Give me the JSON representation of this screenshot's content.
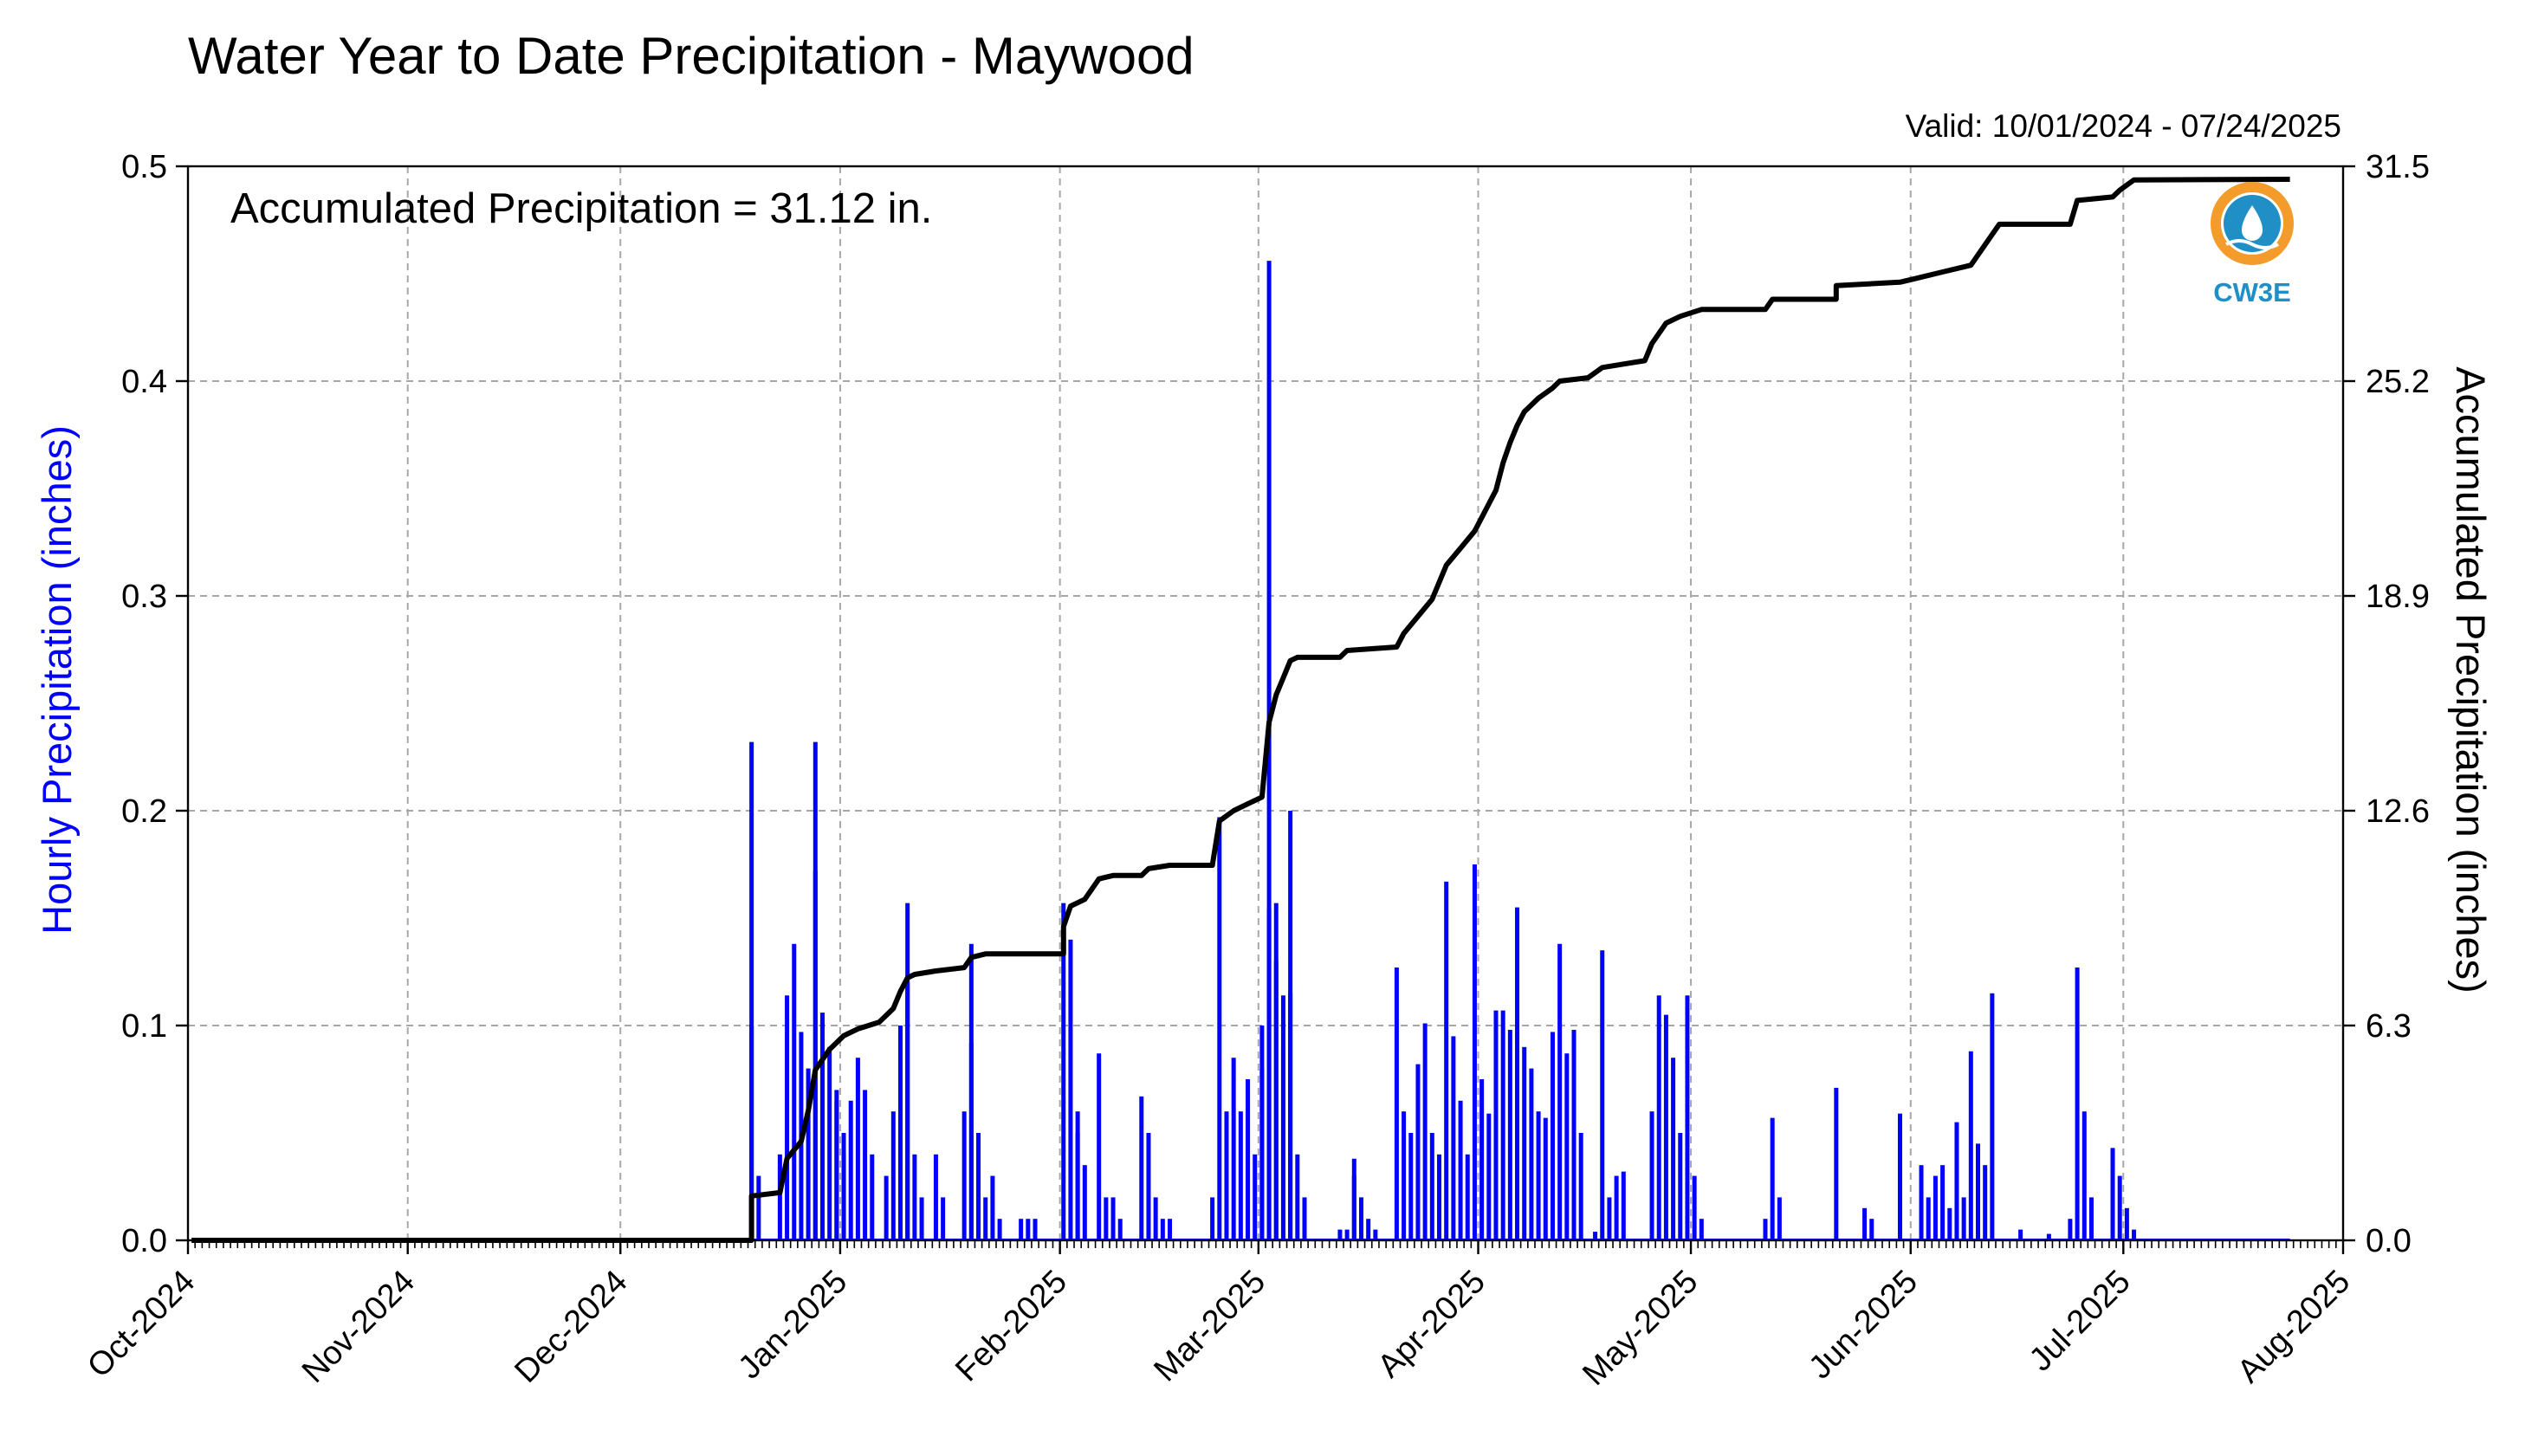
{
  "chart_data": {
    "type": "bar",
    "title": "Water Year to Date Precipitation - Maywood",
    "valid": "Valid: 10/01/2024 - 07/24/2025",
    "annotation": "Accumulated Precipitation = 31.12 in.",
    "ylabel_left": "Hourly Precipitation (inches)",
    "ylabel_right": "Accumulated Precipitation (inches)",
    "x_range": [
      "2024-10-01",
      "2025-08-01"
    ],
    "ylim_left": [
      0.0,
      0.5
    ],
    "ylim_right": [
      0.0,
      31.5
    ],
    "yticks_left": [
      "0.0",
      "0.1",
      "0.2",
      "0.3",
      "0.4",
      "0.5"
    ],
    "yticks_right": [
      "0.0",
      "6.3",
      "12.6",
      "18.9",
      "25.2",
      "31.5"
    ],
    "xticks": [
      "Oct-2024",
      "Nov-2024",
      "Dec-2024",
      "Jan-2025",
      "Feb-2025",
      "Mar-2025",
      "Apr-2025",
      "May-2025",
      "Jun-2025",
      "Jul-2025",
      "Aug-2025"
    ],
    "grid": true,
    "colors": {
      "hourly": "#0000ff",
      "accumulated": "#000000",
      "left_label": "#0000ff"
    },
    "series": [
      {
        "name": "Hourly Precipitation",
        "kind": "bar",
        "points": [
          [
            "2024-12-19",
            0.232
          ],
          [
            "2024-12-19",
            0.1
          ],
          [
            "2024-12-20",
            0.03
          ],
          [
            "2024-12-23",
            0.04
          ],
          [
            "2024-12-24",
            0.114
          ],
          [
            "2024-12-25",
            0.138
          ],
          [
            "2024-12-26",
            0.097
          ],
          [
            "2024-12-27",
            0.08
          ],
          [
            "2024-12-28",
            0.232
          ],
          [
            "2024-12-28",
            0.172
          ],
          [
            "2024-12-29",
            0.106
          ],
          [
            "2024-12-30",
            0.09
          ],
          [
            "2024-12-31",
            0.07
          ],
          [
            "2024-12-31",
            0.065
          ],
          [
            "2025-01-01",
            0.05
          ],
          [
            "2025-01-01",
            0.04
          ],
          [
            "2025-01-02",
            0.065
          ],
          [
            "2025-01-03",
            0.085
          ],
          [
            "2025-01-04",
            0.07
          ],
          [
            "2025-01-05",
            0.04
          ],
          [
            "2025-01-07",
            0.03
          ],
          [
            "2025-01-08",
            0.06
          ],
          [
            "2025-01-09",
            0.1
          ],
          [
            "2025-01-10",
            0.157
          ],
          [
            "2025-01-10",
            0.12
          ],
          [
            "2025-01-11",
            0.04
          ],
          [
            "2025-01-12",
            0.02
          ],
          [
            "2025-01-14",
            0.04
          ],
          [
            "2025-01-15",
            0.02
          ],
          [
            "2025-01-18",
            0.06
          ],
          [
            "2025-01-19",
            0.138
          ],
          [
            "2025-01-19",
            0.092
          ],
          [
            "2025-01-20",
            0.05
          ],
          [
            "2025-01-21",
            0.02
          ],
          [
            "2025-01-22",
            0.03
          ],
          [
            "2025-01-23",
            0.01
          ],
          [
            "2025-01-26",
            0.01
          ],
          [
            "2025-01-27",
            0.01
          ],
          [
            "2025-01-28",
            0.01
          ],
          [
            "2025-02-01",
            0.157
          ],
          [
            "2025-02-02",
            0.14
          ],
          [
            "2025-02-03",
            0.06
          ],
          [
            "2025-02-03",
            0.05
          ],
          [
            "2025-02-04",
            0.035
          ],
          [
            "2025-02-06",
            0.087
          ],
          [
            "2025-02-07",
            0.02
          ],
          [
            "2025-02-08",
            0.02
          ],
          [
            "2025-02-09",
            0.01
          ],
          [
            "2025-02-12",
            0.067
          ],
          [
            "2025-02-13",
            0.05
          ],
          [
            "2025-02-14",
            0.02
          ],
          [
            "2025-02-15",
            0.01
          ],
          [
            "2025-02-16",
            0.01
          ],
          [
            "2025-02-22",
            0.02
          ],
          [
            "2025-02-23",
            0.197
          ],
          [
            "2025-02-24",
            0.06
          ],
          [
            "2025-02-25",
            0.085
          ],
          [
            "2025-02-26",
            0.06
          ],
          [
            "2025-02-27",
            0.075
          ],
          [
            "2025-02-28",
            0.04
          ],
          [
            "2025-03-01",
            0.1
          ],
          [
            "2025-03-01",
            0.08
          ],
          [
            "2025-03-02",
            0.456
          ],
          [
            "2025-03-02",
            0.154
          ],
          [
            "2025-03-03",
            0.157
          ],
          [
            "2025-03-03",
            0.13
          ],
          [
            "2025-03-04",
            0.114
          ],
          [
            "2025-03-04",
            0.09
          ],
          [
            "2025-03-05",
            0.2
          ],
          [
            "2025-03-05",
            0.115
          ],
          [
            "2025-03-06",
            0.04
          ],
          [
            "2025-03-07",
            0.02
          ],
          [
            "2025-03-12",
            0.005
          ],
          [
            "2025-03-13",
            0.005
          ],
          [
            "2025-03-14",
            0.038
          ],
          [
            "2025-03-14",
            0.03
          ],
          [
            "2025-03-15",
            0.02
          ],
          [
            "2025-03-16",
            0.01
          ],
          [
            "2025-03-17",
            0.005
          ],
          [
            "2025-03-20",
            0.127
          ],
          [
            "2025-03-21",
            0.06
          ],
          [
            "2025-03-22",
            0.05
          ],
          [
            "2025-03-23",
            0.082
          ],
          [
            "2025-03-24",
            0.101
          ],
          [
            "2025-03-25",
            0.05
          ],
          [
            "2025-03-26",
            0.04
          ],
          [
            "2025-03-27",
            0.167
          ],
          [
            "2025-03-28",
            0.095
          ],
          [
            "2025-03-29",
            0.065
          ],
          [
            "2025-03-30",
            0.04
          ],
          [
            "2025-03-31",
            0.175
          ],
          [
            "2025-04-01",
            0.075
          ],
          [
            "2025-04-02",
            0.059
          ],
          [
            "2025-04-03",
            0.107
          ],
          [
            "2025-04-04",
            0.107
          ],
          [
            "2025-04-05",
            0.098
          ],
          [
            "2025-04-06",
            0.155
          ],
          [
            "2025-04-07",
            0.09
          ],
          [
            "2025-04-08",
            0.08
          ],
          [
            "2025-04-09",
            0.06
          ],
          [
            "2025-04-10",
            0.057
          ],
          [
            "2025-04-11",
            0.097
          ],
          [
            "2025-04-12",
            0.138
          ],
          [
            "2025-04-13",
            0.087
          ],
          [
            "2025-04-14",
            0.098
          ],
          [
            "2025-04-15",
            0.05
          ],
          [
            "2025-04-17",
            0.004
          ],
          [
            "2025-04-18",
            0.135
          ],
          [
            "2025-04-19",
            0.02
          ],
          [
            "2025-04-20",
            0.03
          ],
          [
            "2025-04-21",
            0.032
          ],
          [
            "2025-04-25",
            0.06
          ],
          [
            "2025-04-26",
            0.114
          ],
          [
            "2025-04-27",
            0.105
          ],
          [
            "2025-04-28",
            0.085
          ],
          [
            "2025-04-29",
            0.05
          ],
          [
            "2025-04-30",
            0.114
          ],
          [
            "2025-05-01",
            0.03
          ],
          [
            "2025-05-02",
            0.01
          ],
          [
            "2025-05-11",
            0.01
          ],
          [
            "2025-05-12",
            0.057
          ],
          [
            "2025-05-13",
            0.02
          ],
          [
            "2025-05-21",
            0.071
          ],
          [
            "2025-05-25",
            0.015
          ],
          [
            "2025-05-26",
            0.01
          ],
          [
            "2025-05-30",
            0.059
          ],
          [
            "2025-06-02",
            0.035
          ],
          [
            "2025-06-03",
            0.02
          ],
          [
            "2025-06-04",
            0.03
          ],
          [
            "2025-06-05",
            0.035
          ],
          [
            "2025-06-06",
            0.015
          ],
          [
            "2025-06-07",
            0.055
          ],
          [
            "2025-06-08",
            0.02
          ],
          [
            "2025-06-09",
            0.088
          ],
          [
            "2025-06-10",
            0.045
          ],
          [
            "2025-06-11",
            0.035
          ],
          [
            "2025-06-12",
            0.115
          ],
          [
            "2025-06-16",
            0.005
          ],
          [
            "2025-06-20",
            0.003
          ],
          [
            "2025-06-23",
            0.01
          ],
          [
            "2025-06-24",
            0.127
          ],
          [
            "2025-06-25",
            0.06
          ],
          [
            "2025-06-26",
            0.02
          ],
          [
            "2025-06-29",
            0.043
          ],
          [
            "2025-06-30",
            0.03
          ],
          [
            "2025-07-01",
            0.015
          ],
          [
            "2025-07-02",
            0.005
          ]
        ]
      },
      {
        "name": "Accumulated Precipitation",
        "kind": "line",
        "points": [
          [
            "2024-10-01",
            0.0
          ],
          [
            "2024-12-19",
            0.0
          ],
          [
            "2024-12-19",
            1.3
          ],
          [
            "2024-12-23",
            1.4
          ],
          [
            "2024-12-24",
            2.4
          ],
          [
            "2024-12-26",
            2.9
          ],
          [
            "2024-12-27",
            3.8
          ],
          [
            "2024-12-28",
            5.0
          ],
          [
            "2024-12-30",
            5.6
          ],
          [
            "2025-01-01",
            6.0
          ],
          [
            "2025-01-03",
            6.2
          ],
          [
            "2025-01-06",
            6.4
          ],
          [
            "2025-01-08",
            6.8
          ],
          [
            "2025-01-09",
            7.3
          ],
          [
            "2025-01-10",
            7.7
          ],
          [
            "2025-01-11",
            7.8
          ],
          [
            "2025-01-14",
            7.9
          ],
          [
            "2025-01-18",
            8.0
          ],
          [
            "2025-01-19",
            8.3
          ],
          [
            "2025-01-21",
            8.4
          ],
          [
            "2025-02-01",
            8.4
          ],
          [
            "2025-02-01",
            9.2
          ],
          [
            "2025-02-02",
            9.8
          ],
          [
            "2025-02-04",
            10.0
          ],
          [
            "2025-02-06",
            10.6
          ],
          [
            "2025-02-08",
            10.7
          ],
          [
            "2025-02-12",
            10.7
          ],
          [
            "2025-02-13",
            10.9
          ],
          [
            "2025-02-16",
            11.0
          ],
          [
            "2025-02-22",
            11.0
          ],
          [
            "2025-02-23",
            12.3
          ],
          [
            "2025-02-25",
            12.6
          ],
          [
            "2025-02-27",
            12.8
          ],
          [
            "2025-03-01",
            13.0
          ],
          [
            "2025-03-02",
            15.2
          ],
          [
            "2025-03-03",
            16.0
          ],
          [
            "2025-03-04",
            16.5
          ],
          [
            "2025-03-05",
            17.0
          ],
          [
            "2025-03-06",
            17.1
          ],
          [
            "2025-03-12",
            17.1
          ],
          [
            "2025-03-13",
            17.3
          ],
          [
            "2025-03-20",
            17.4
          ],
          [
            "2025-03-21",
            17.8
          ],
          [
            "2025-03-23",
            18.3
          ],
          [
            "2025-03-25",
            18.8
          ],
          [
            "2025-03-27",
            19.8
          ],
          [
            "2025-03-29",
            20.3
          ],
          [
            "2025-03-31",
            20.8
          ],
          [
            "2025-04-02",
            21.6
          ],
          [
            "2025-04-03",
            22.0
          ],
          [
            "2025-04-04",
            22.8
          ],
          [
            "2025-04-05",
            23.4
          ],
          [
            "2025-04-06",
            23.9
          ],
          [
            "2025-04-07",
            24.3
          ],
          [
            "2025-04-09",
            24.7
          ],
          [
            "2025-04-11",
            25.0
          ],
          [
            "2025-04-12",
            25.2
          ],
          [
            "2025-04-16",
            25.3
          ],
          [
            "2025-04-18",
            25.6
          ],
          [
            "2025-04-21",
            25.7
          ],
          [
            "2025-04-24",
            25.8
          ],
          [
            "2025-04-25",
            26.3
          ],
          [
            "2025-04-27",
            26.9
          ],
          [
            "2025-04-29",
            27.1
          ],
          [
            "2025-05-02",
            27.3
          ],
          [
            "2025-05-11",
            27.3
          ],
          [
            "2025-05-12",
            27.6
          ],
          [
            "2025-05-21",
            27.6
          ],
          [
            "2025-05-21",
            28.0
          ],
          [
            "2025-05-30",
            28.1
          ],
          [
            "2025-06-01",
            28.2
          ],
          [
            "2025-06-05",
            28.4
          ],
          [
            "2025-06-09",
            28.6
          ],
          [
            "2025-06-10",
            28.9
          ],
          [
            "2025-06-12",
            29.5
          ],
          [
            "2025-06-13",
            29.8
          ],
          [
            "2025-06-23",
            29.8
          ],
          [
            "2025-06-24",
            30.5
          ],
          [
            "2025-06-29",
            30.6
          ],
          [
            "2025-06-30",
            30.8
          ],
          [
            "2025-07-02",
            31.1
          ],
          [
            "2025-07-24",
            31.12
          ]
        ]
      }
    ]
  },
  "logo": {
    "text": "CW3E",
    "colors": {
      "orange": "#f39c2b",
      "blue": "#1f8fc6"
    }
  }
}
